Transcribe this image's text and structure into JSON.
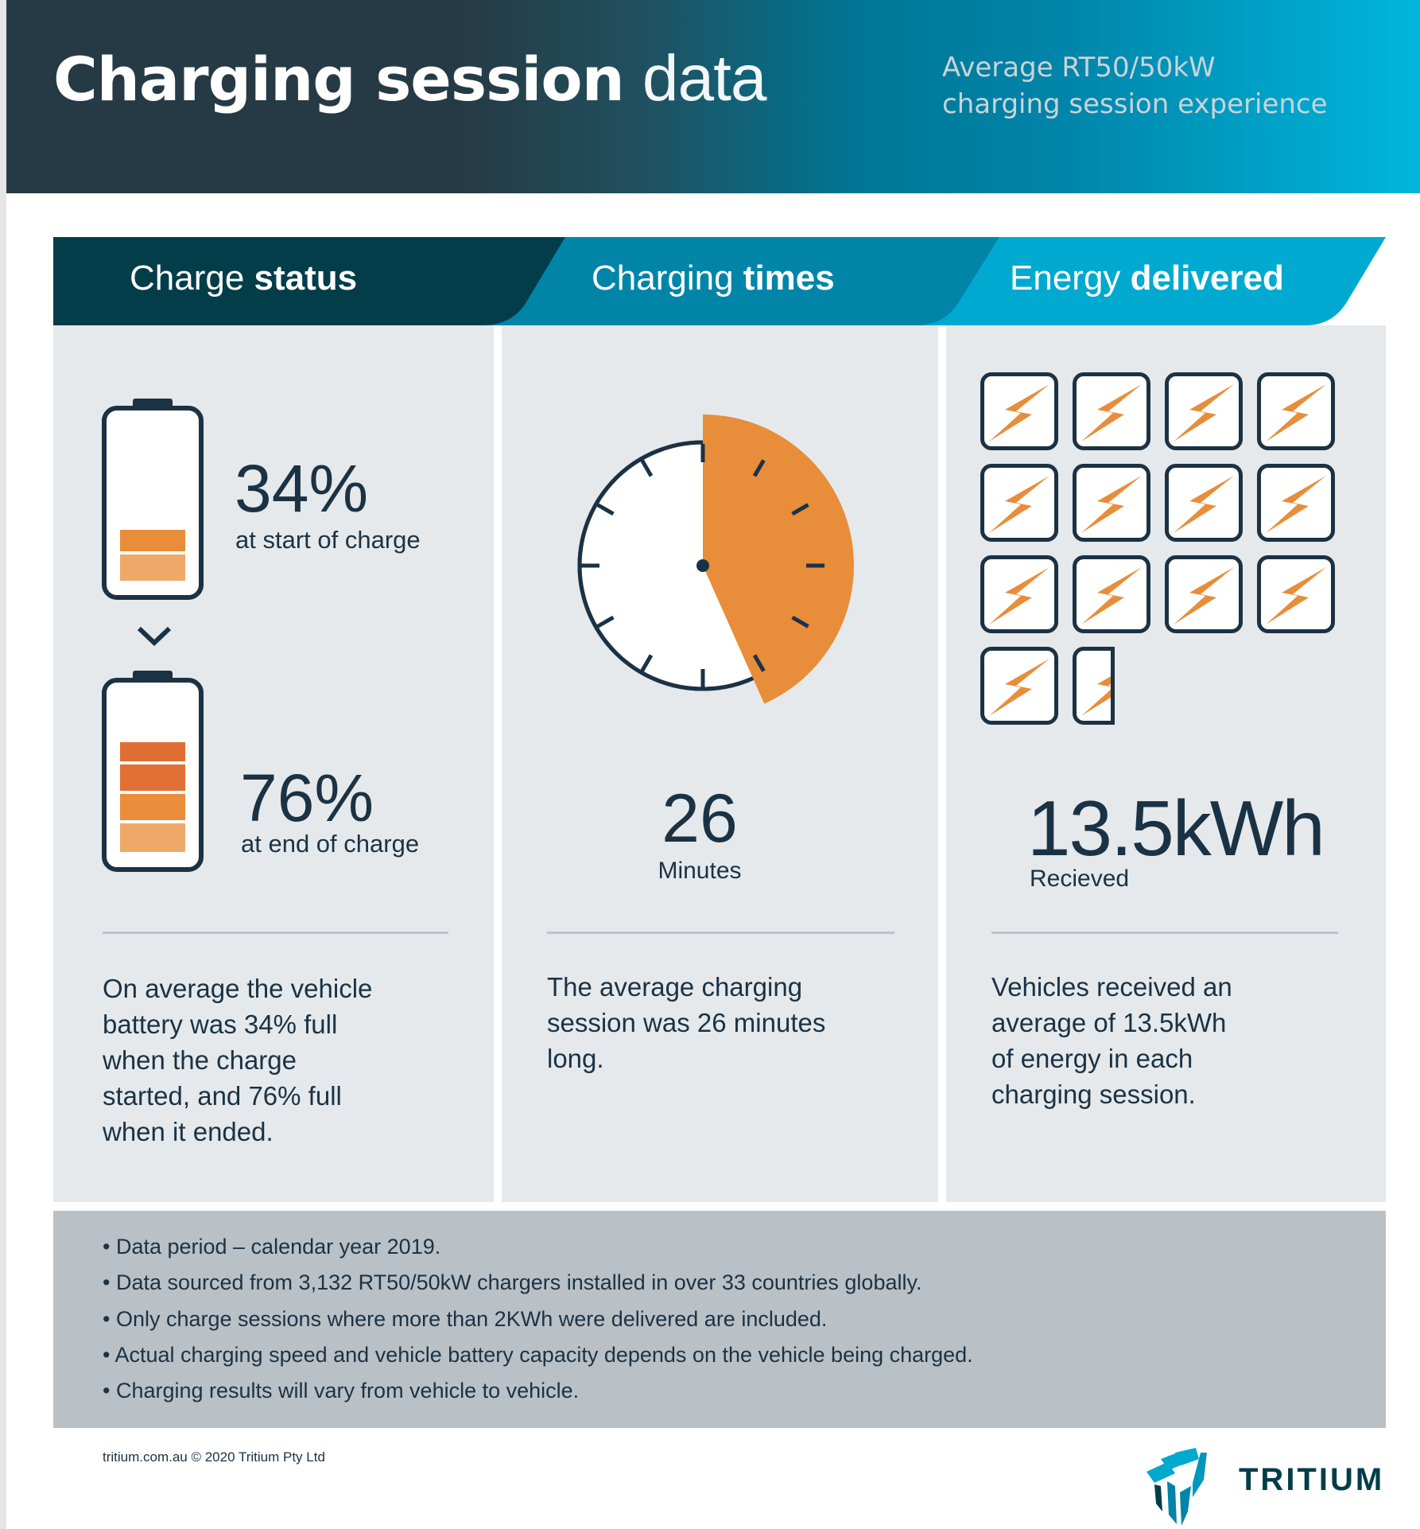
{
  "header": {
    "title_bold": "Charging session",
    "title_light": "data",
    "subtitle_line1": "Average RT50/50kW",
    "subtitle_line2": "charging session experience"
  },
  "tabs": [
    {
      "light": "Charge",
      "bold": "status",
      "color": "#043d4a"
    },
    {
      "light": "Charging",
      "bold": "times",
      "color": "#0085a8"
    },
    {
      "light": "Energy",
      "bold": "delivered",
      "color": "#00a9cf"
    }
  ],
  "charge_status": {
    "start_value": "34%",
    "start_label": "at start of charge",
    "start_percent": 34,
    "end_value": "76%",
    "end_label": "at end of charge",
    "end_percent": 76,
    "description": [
      "On average the vehicle",
      "battery was 34% full",
      "when the charge",
      "started, and 76% full",
      "when it ended."
    ]
  },
  "charging_times": {
    "value": "26",
    "unit": "Minutes",
    "minutes": 26,
    "description": [
      "The average charging",
      "session was 26 minutes",
      "long."
    ]
  },
  "energy_delivered": {
    "value": "13.5kWh",
    "label": "Recieved",
    "icon_count": 13.5,
    "icon": "lightning-bolt-icon",
    "description": [
      "Vehicles received an",
      "average of 13.5kWh",
      "of energy in each",
      "charging session."
    ]
  },
  "notes": [
    "• Data period – calendar year 2019.",
    "• Data sourced from 3,132 RT50/50kW chargers installed in over 33 countries globally.",
    "• Only charge sessions where more than 2KWh were delivered are included.",
    "• Actual charging speed and vehicle battery capacity depends on the vehicle being charged.",
    "• Charging results will vary from vehicle to vehicle."
  ],
  "footer": {
    "copyright": "tritium.com.au © 2020 Tritium Pty Ltd",
    "logo_text": "TRITIUM"
  },
  "colors": {
    "navy": "#1b3244",
    "orange": "#e88d3a",
    "panel": "#e5e9ec",
    "notes_bg": "#b9c0c6"
  }
}
